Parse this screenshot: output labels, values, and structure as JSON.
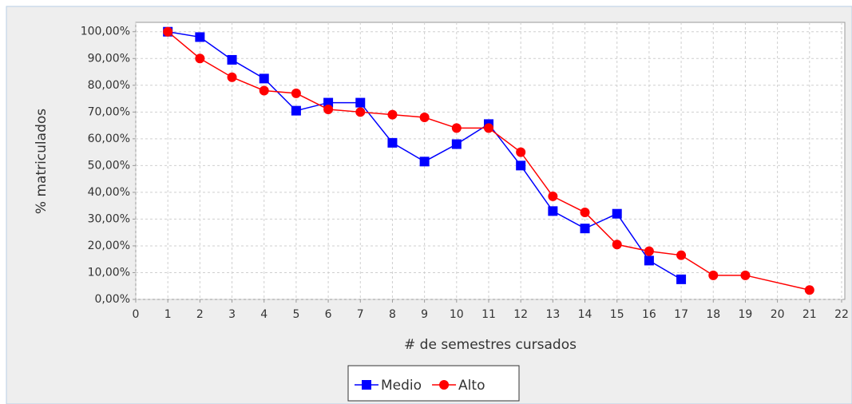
{
  "chart_data": {
    "type": "line",
    "xlabel": "# de semestres cursados",
    "ylabel": "% matriculados",
    "xlim": [
      0,
      22.1
    ],
    "ylim": [
      0,
      103.5
    ],
    "xticks": [
      0,
      1,
      2,
      3,
      4,
      5,
      6,
      7,
      8,
      9,
      10,
      11,
      12,
      13,
      14,
      15,
      16,
      17,
      18,
      19,
      20,
      21,
      22
    ],
    "yticks": [
      {
        "value": 0,
        "label": "0,00%"
      },
      {
        "value": 10,
        "label": "10,00%"
      },
      {
        "value": 20,
        "label": "20,00%"
      },
      {
        "value": 30,
        "label": "30,00%"
      },
      {
        "value": 40,
        "label": "40,00%"
      },
      {
        "value": 50,
        "label": "50,00%"
      },
      {
        "value": 60,
        "label": "60,00%"
      },
      {
        "value": 70,
        "label": "70,00%"
      },
      {
        "value": 80,
        "label": "80,00%"
      },
      {
        "value": 90,
        "label": "90,00%"
      },
      {
        "value": 100,
        "label": "100,00%"
      }
    ],
    "grid": true,
    "legend": "bottom",
    "series": [
      {
        "name": "Medio",
        "color": "#0000ff",
        "marker": "square",
        "x": [
          1,
          2,
          3,
          4,
          5,
          6,
          7,
          8,
          9,
          10,
          11,
          12,
          13,
          14,
          15,
          16,
          17
        ],
        "values": [
          100,
          98,
          89.5,
          82.5,
          70.5,
          73.5,
          73.5,
          58.5,
          51.5,
          58,
          65.5,
          50,
          33,
          26.5,
          32,
          14.5,
          7.5
        ]
      },
      {
        "name": "Alto",
        "color": "#ff0000",
        "marker": "circle",
        "x": [
          1,
          2,
          3,
          4,
          5,
          6,
          7,
          8,
          9,
          10,
          11,
          12,
          13,
          14,
          15,
          16,
          17,
          18,
          19,
          21
        ],
        "values": [
          100,
          90,
          83,
          78,
          77,
          71,
          70,
          69,
          68,
          64,
          64,
          55,
          38.5,
          32.5,
          20.5,
          18,
          16.5,
          9,
          9,
          3.5
        ]
      }
    ]
  }
}
